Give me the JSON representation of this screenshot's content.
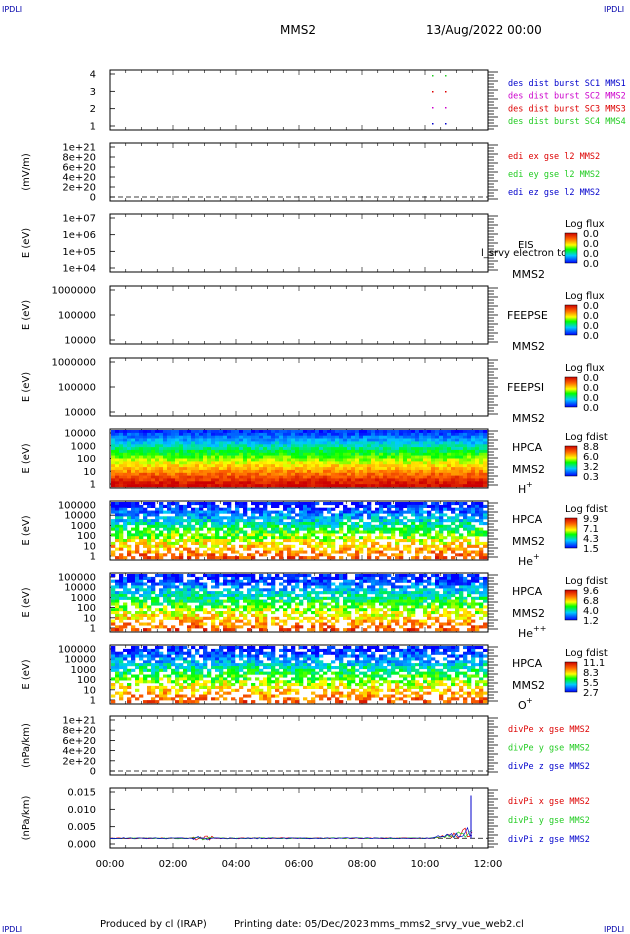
{
  "header": {
    "mission": "MMS2",
    "datetime": "13/Aug/2022 00:00",
    "corner_tl": "IPDLI",
    "corner_tr": "IPDLI",
    "corner_bl": "IPDLI",
    "corner_br": "IPDLI"
  },
  "footer": {
    "produced_by": "Produced by cl (IRAP)",
    "printing_date": "Printing date: 05/Dec/2023",
    "filename": "mms_mms2_srvy_vue_web2.cl"
  },
  "x_ticks": [
    "00:00",
    "02:00",
    "04:00",
    "06:00",
    "08:00",
    "10:00",
    "12:00"
  ],
  "colors": {
    "red": "#dd0000",
    "green": "#22cc22",
    "blue": "#0000cc",
    "magenta": "#cc00cc"
  },
  "chart_data": [
    {
      "type": "scatter",
      "ylim": [
        0.5,
        4.5
      ],
      "yticks": [
        "4",
        "3",
        "2",
        "1"
      ],
      "ylabel": "",
      "series": [
        {
          "name": "des dist burst SC1 MMS1",
          "color": "#0000cc"
        },
        {
          "name": "des dist burst SC2 MMS2",
          "color": "#cc00cc"
        },
        {
          "name": "des dist burst SC3 MMS3",
          "color": "#dd0000"
        },
        {
          "name": "des dist burst SC4 MMS4",
          "color": "#22cc22"
        }
      ]
    },
    {
      "type": "line",
      "ylabel": "(mV/m)",
      "yticks": [
        "1e+21",
        "8e+20",
        "6e+20",
        "4e+20",
        "2e+20",
        "0"
      ],
      "series": [
        {
          "name": "edi ex gse l2 MMS2",
          "color": "#dd0000"
        },
        {
          "name": "edi ey gse l2 MMS2",
          "color": "#22cc22"
        },
        {
          "name": "edi ez gse l2 MMS2",
          "color": "#0000cc"
        }
      ]
    },
    {
      "type": "heatmap",
      "ylabel": "E (eV)",
      "yticks": [
        "1e+07",
        "1e+06",
        "1e+05",
        "1e+04"
      ],
      "instrument": "EIS",
      "overlay": "l_srvy electron to",
      "sc": "MMS2",
      "cbar_title": "Log flux",
      "cbar_values": [
        "0.0",
        "0.0",
        "0.0",
        "0.0"
      ]
    },
    {
      "type": "heatmap",
      "ylabel": "E (eV)",
      "yticks": [
        "1000000",
        "100000",
        "10000"
      ],
      "instrument": "FEEPSE",
      "sc": "MMS2",
      "cbar_title": "Log flux",
      "cbar_values": [
        "0.0",
        "0.0",
        "0.0",
        "0.0"
      ]
    },
    {
      "type": "heatmap",
      "ylabel": "E (eV)",
      "yticks": [
        "1000000",
        "100000",
        "10000"
      ],
      "instrument": "FEEPSI",
      "sc": "MMS2",
      "cbar_title": "Log flux",
      "cbar_values": [
        "0.0",
        "0.0",
        "0.0",
        "0.0"
      ]
    },
    {
      "type": "heatmap",
      "ylabel": "E (eV)",
      "yticks": [
        "10000",
        "1000",
        "100",
        "10",
        "1"
      ],
      "instrument": "HPCA",
      "sc": "MMS2",
      "species": "H",
      "species_sup": "+",
      "cbar_title": "Log fdist",
      "cbar_values": [
        "8.8",
        "6.0",
        "3.2",
        "0.3"
      ]
    },
    {
      "type": "heatmap",
      "ylabel": "E (eV)",
      "yticks": [
        "100000",
        "10000",
        "1000",
        "100",
        "10",
        "1"
      ],
      "instrument": "HPCA",
      "sc": "MMS2",
      "species": "He",
      "species_sup": "+",
      "cbar_title": "Log fdist",
      "cbar_values": [
        "9.9",
        "7.1",
        "4.3",
        "1.5"
      ]
    },
    {
      "type": "heatmap",
      "ylabel": "E (eV)",
      "yticks": [
        "100000",
        "10000",
        "1000",
        "100",
        "10",
        "1"
      ],
      "instrument": "HPCA",
      "sc": "MMS2",
      "species": "He",
      "species_sup": "++",
      "cbar_title": "Log fdist",
      "cbar_values": [
        "9.6",
        "6.8",
        "4.0",
        "1.2"
      ]
    },
    {
      "type": "heatmap",
      "ylabel": "E (eV)",
      "yticks": [
        "100000",
        "10000",
        "1000",
        "100",
        "10",
        "1"
      ],
      "instrument": "HPCA",
      "sc": "MMS2",
      "species": "O",
      "species_sup": "+",
      "cbar_title": "Log fdist",
      "cbar_values": [
        "11.1",
        "8.3",
        "5.5",
        "2.7"
      ]
    },
    {
      "type": "line",
      "ylabel": "(nPa/km)",
      "yticks": [
        "1e+21",
        "8e+20",
        "6e+20",
        "4e+20",
        "2e+20",
        "0"
      ],
      "series": [
        {
          "name": "divPe x gse MMS2",
          "color": "#dd0000"
        },
        {
          "name": "divPe y gse MMS2",
          "color": "#22cc22"
        },
        {
          "name": "divPe z gse MMS2",
          "color": "#0000cc"
        }
      ]
    },
    {
      "type": "line",
      "ylabel": "(nPa/km)",
      "yticks": [
        "0.015",
        "0.010",
        "0.005",
        "0.000"
      ],
      "ylim": [
        -0.002,
        0.016
      ],
      "series": [
        {
          "name": "divPi x gse MMS2",
          "color": "#dd0000"
        },
        {
          "name": "divPi y gse MMS2",
          "color": "#22cc22"
        },
        {
          "name": "divPi z gse MMS2",
          "color": "#0000cc"
        }
      ]
    }
  ]
}
